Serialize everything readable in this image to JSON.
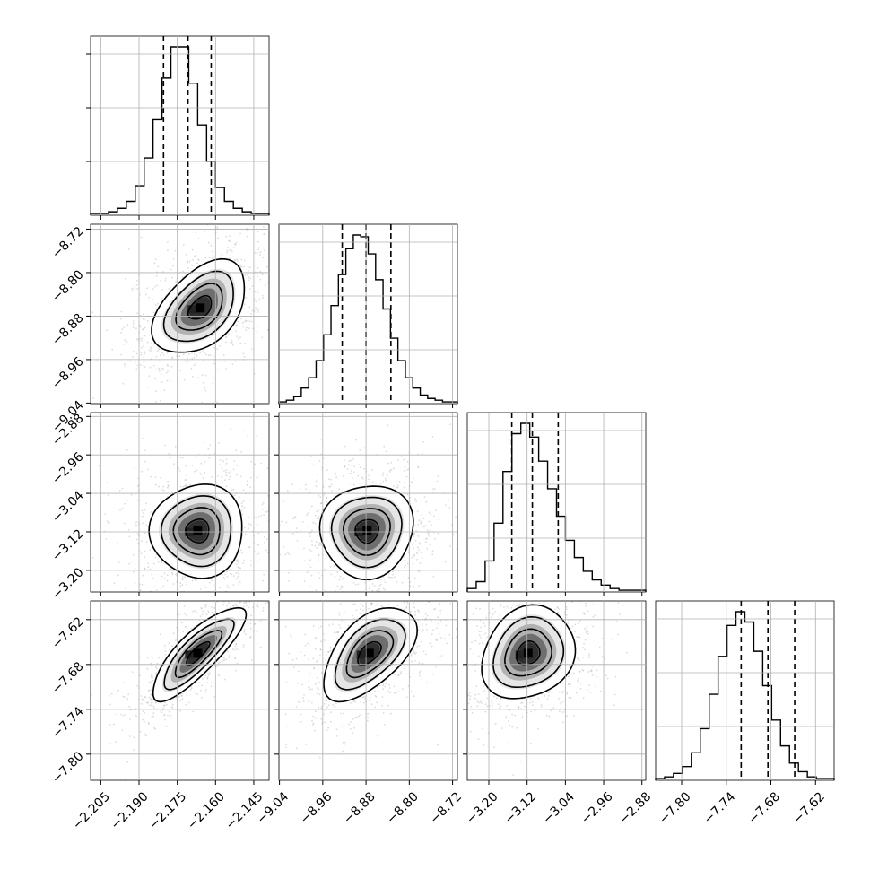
{
  "chart_data": {
    "type": "corner",
    "parameters": [
      {
        "range": [
          -2.209,
          -2.139
        ],
        "ticks": [
          "−2.205",
          "−2.190",
          "−2.175",
          "−2.160",
          "−2.145"
        ],
        "quantiles": [
          -2.1804,
          -2.1708,
          -2.1617
        ],
        "histogram": [
          1,
          1,
          2,
          4,
          8,
          17,
          33,
          55,
          79,
          97,
          97,
          76,
          52,
          31,
          16,
          8,
          4,
          2,
          1,
          1
        ]
      },
      {
        "range": [
          -9.041,
          -8.711
        ],
        "ticks": [
          "−9.04",
          "−8.96",
          "−8.88",
          "−8.80",
          "−8.72"
        ],
        "quantiles": [
          -8.924,
          -8.88,
          -8.834
        ],
        "histogram": [
          1,
          2,
          4,
          9,
          15,
          25,
          40,
          57,
          75,
          90,
          98,
          97,
          87,
          72,
          55,
          38,
          25,
          15,
          9,
          5,
          3,
          2,
          1,
          1
        ]
      },
      {
        "range": [
          -3.245,
          -2.872
        ],
        "ticks": [
          "−3.20",
          "−3.12",
          "−3.04",
          "−2.96",
          "−2.88"
        ],
        "quantiles": [
          -3.152,
          -3.109,
          -3.055
        ],
        "histogram": [
          2,
          6,
          18,
          40,
          70,
          92,
          98,
          90,
          76,
          60,
          44,
          30,
          20,
          12,
          7,
          4,
          2,
          1,
          1,
          1
        ]
      },
      {
        "range": [
          -7.835,
          -7.595
        ],
        "ticks": [
          "−7.80",
          "−7.74",
          "−7.68",
          "−7.62"
        ],
        "quantiles": [
          -7.72,
          -7.684,
          -7.648
        ],
        "histogram": [
          1,
          2,
          4,
          8,
          16,
          30,
          50,
          72,
          90,
          98,
          92,
          75,
          55,
          35,
          20,
          10,
          5,
          2,
          1,
          1
        ]
      }
    ],
    "pairs": [
      {
        "row": 1,
        "col": 0,
        "mode": [
          -2.166,
          -8.865
        ],
        "corr": 0.45
      },
      {
        "row": 2,
        "col": 0,
        "mode": [
          -2.167,
          -3.118
        ],
        "corr": 0.02
      },
      {
        "row": 2,
        "col": 1,
        "mode": [
          -8.878,
          -3.118
        ],
        "corr": 0.05
      },
      {
        "row": 3,
        "col": 0,
        "mode": [
          -2.167,
          -7.665
        ],
        "corr": 0.82
      },
      {
        "row": 3,
        "col": 1,
        "mode": [
          -8.874,
          -7.665
        ],
        "corr": 0.55
      },
      {
        "row": 3,
        "col": 2,
        "mode": [
          -3.118,
          -7.665
        ],
        "corr": 0.18
      }
    ],
    "contour_levels": [
      0.5,
      1.0,
      1.5,
      2.0
    ],
    "grid": true,
    "colors": {
      "hist_line": "#000000",
      "density": "#000000",
      "points": "#9a9a9a",
      "grid": "#b0b0b0"
    }
  }
}
